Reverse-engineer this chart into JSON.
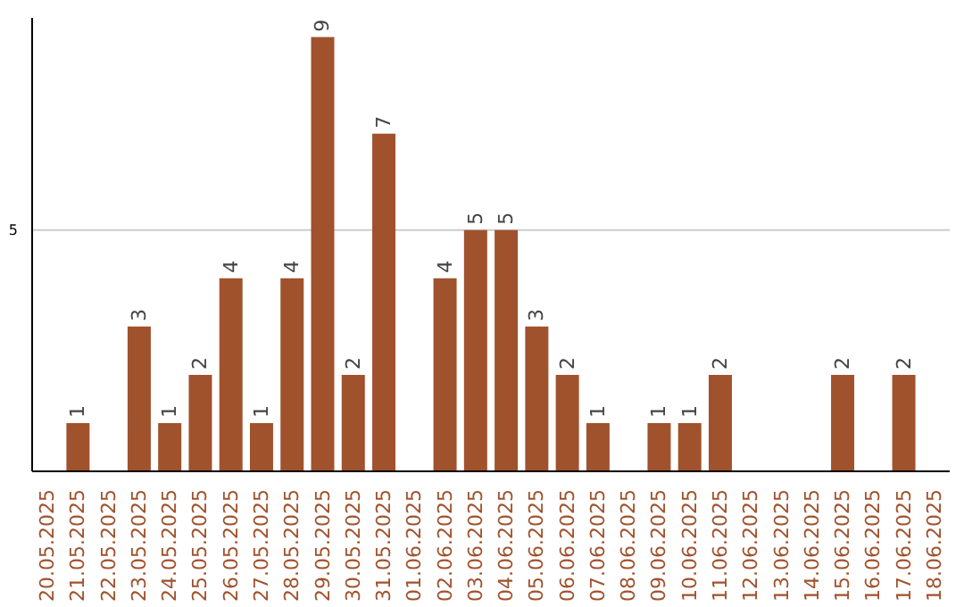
{
  "chart_data": {
    "type": "bar",
    "categories": [
      "20.05.2025",
      "21.05.2025",
      "22.05.2025",
      "23.05.2025",
      "24.05.2025",
      "25.05.2025",
      "26.05.2025",
      "27.05.2025",
      "28.05.2025",
      "29.05.2025",
      "30.05.2025",
      "31.05.2025",
      "01.06.2025",
      "02.06.2025",
      "03.06.2025",
      "04.06.2025",
      "05.06.2025",
      "06.06.2025",
      "07.06.2025",
      "08.06.2025",
      "09.06.2025",
      "10.06.2025",
      "11.06.2025",
      "12.06.2025",
      "13.06.2025",
      "14.06.2025",
      "15.06.2025",
      "16.06.2025",
      "17.06.2025",
      "18.06.2025"
    ],
    "values": [
      0,
      1,
      0,
      3,
      1,
      2,
      4,
      1,
      4,
      9,
      2,
      7,
      0,
      4,
      5,
      5,
      3,
      2,
      1,
      0,
      1,
      1,
      2,
      0,
      0,
      0,
      2,
      0,
      2,
      0
    ],
    "value_labels": [
      null,
      "1",
      null,
      "3",
      "1",
      "2",
      "4",
      "1",
      "4",
      "9",
      "2",
      "7",
      null,
      "4",
      "5",
      "5",
      "3",
      "2",
      "1",
      null,
      "1",
      "1",
      "2",
      null,
      null,
      null,
      "2",
      null,
      "2",
      null
    ],
    "color": "#a0522d",
    "ylim": [
      0,
      9.4
    ],
    "yticks": [
      5
    ],
    "grid": "y"
  }
}
